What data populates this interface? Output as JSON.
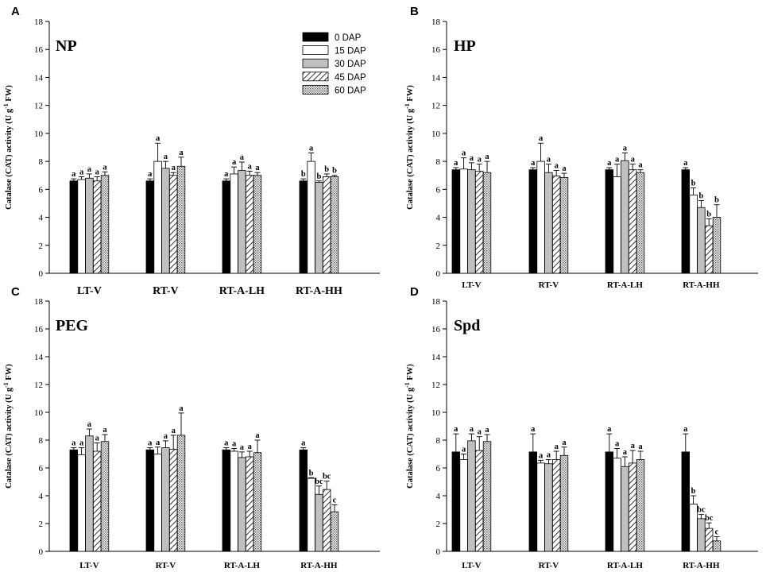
{
  "figure": {
    "series_names": [
      "0 DAP",
      "15 DAP",
      "30 DAP",
      "45 DAP",
      "60 DAP"
    ],
    "categories": [
      "LT-V",
      "RT-V",
      "RT-A-LH",
      "RT-A-HH"
    ]
  },
  "chart_data": [
    {
      "panel_label": "A",
      "title": "NP",
      "type": "bar",
      "ylabel_main": "Catalase (CAT) activity (U g",
      "ylabel_sup": "-1",
      "ylabel_end": " FW)",
      "ylim": [
        0,
        18
      ],
      "yticks": [
        0,
        2,
        4,
        6,
        8,
        10,
        12,
        14,
        16,
        18
      ],
      "categories": [
        "LT-V",
        "RT-V",
        "RT-A-LH",
        "RT-A-HH"
      ],
      "series": [
        {
          "name": "0 DAP",
          "values": [
            6.6,
            6.6,
            6.6,
            6.6
          ],
          "errors": [
            0.15,
            0.15,
            0.15,
            0.15
          ],
          "letters": [
            "a",
            "a",
            "a",
            "b"
          ]
        },
        {
          "name": "15 DAP",
          "values": [
            6.7,
            8.0,
            7.1,
            8.0
          ],
          "errors": [
            0.2,
            1.3,
            0.5,
            0.6
          ],
          "letters": [
            "a",
            "a",
            "a",
            "a"
          ]
        },
        {
          "name": "30 DAP",
          "values": [
            6.8,
            7.5,
            7.35,
            6.5
          ],
          "errors": [
            0.3,
            0.5,
            0.6,
            0.1
          ],
          "letters": [
            "a",
            "a",
            "a",
            "b"
          ]
        },
        {
          "name": "45 DAP",
          "values": [
            6.6,
            7.0,
            7.0,
            6.9
          ],
          "errors": [
            0.3,
            0.2,
            0.3,
            0.2
          ],
          "letters": [
            "a",
            "a",
            "a",
            "b"
          ]
        },
        {
          "name": "60 DAP",
          "values": [
            7.0,
            7.65,
            7.0,
            6.9
          ],
          "errors": [
            0.25,
            0.65,
            0.2,
            0.1
          ],
          "letters": [
            "a",
            "a",
            "a",
            "b"
          ]
        }
      ]
    },
    {
      "panel_label": "B",
      "title": "HP",
      "type": "bar",
      "ylabel_main": "Catalase (CAT) activity (U g",
      "ylabel_sup": "-1",
      "ylabel_end": " FW)",
      "ylim": [
        0,
        18
      ],
      "yticks": [
        0,
        2,
        4,
        6,
        8,
        10,
        12,
        14,
        16,
        18
      ],
      "categories": [
        "LT-V",
        "RT-V",
        "RT-A-LH",
        "RT-A-HH"
      ],
      "series": [
        {
          "name": "0 DAP",
          "values": [
            7.4,
            7.4,
            7.4,
            7.4
          ],
          "errors": [
            0.15,
            0.15,
            0.15,
            0.15
          ],
          "letters": [
            "a",
            "a",
            "a",
            "a"
          ]
        },
        {
          "name": "15 DAP",
          "values": [
            7.45,
            8.0,
            6.9,
            5.6
          ],
          "errors": [
            0.8,
            1.3,
            0.9,
            0.5
          ],
          "letters": [
            "a",
            "a",
            "a",
            "b"
          ]
        },
        {
          "name": "30 DAP",
          "values": [
            7.4,
            7.2,
            8.05,
            4.7
          ],
          "errors": [
            0.5,
            0.6,
            0.55,
            0.5
          ],
          "letters": [
            "a",
            "a",
            "a",
            "b"
          ]
        },
        {
          "name": "45 DAP",
          "values": [
            7.3,
            6.95,
            7.4,
            3.4
          ],
          "errors": [
            0.5,
            0.4,
            0.4,
            0.5
          ],
          "letters": [
            "a",
            "a",
            "a",
            "b"
          ]
        },
        {
          "name": "60 DAP",
          "values": [
            7.2,
            6.85,
            7.2,
            4.0
          ],
          "errors": [
            0.8,
            0.3,
            0.2,
            0.9
          ],
          "letters": [
            "a",
            "a",
            "a",
            "b"
          ]
        }
      ]
    },
    {
      "panel_label": "C",
      "title": "PEG",
      "type": "bar",
      "ylabel_main": "Catalase (CAT) activity (U g",
      "ylabel_sup": "-1",
      "ylabel_end": " FW)",
      "ylim": [
        0,
        18
      ],
      "yticks": [
        0,
        2,
        4,
        6,
        8,
        10,
        12,
        14,
        16,
        18
      ],
      "categories": [
        "LT-V",
        "RT-V",
        "RT-A-LH",
        "RT-A-HH"
      ],
      "series": [
        {
          "name": "0 DAP",
          "values": [
            7.3,
            7.3,
            7.3,
            7.3
          ],
          "errors": [
            0.15,
            0.15,
            0.15,
            0.15
          ],
          "letters": [
            "a",
            "a",
            "a",
            "a"
          ]
        },
        {
          "name": "15 DAP",
          "values": [
            6.95,
            7.0,
            7.2,
            5.25
          ],
          "errors": [
            0.5,
            0.5,
            0.2,
            0.05
          ],
          "letters": [
            "a",
            "a",
            "a",
            "b"
          ]
        },
        {
          "name": "30 DAP",
          "values": [
            8.3,
            7.45,
            6.75,
            4.1
          ],
          "errors": [
            0.5,
            0.5,
            0.4,
            0.6
          ],
          "letters": [
            "a",
            "a",
            "a",
            "bc"
          ]
        },
        {
          "name": "45 DAP",
          "values": [
            7.2,
            7.35,
            6.8,
            4.45
          ],
          "errors": [
            0.6,
            1.0,
            0.4,
            0.6
          ],
          "letters": [
            "a",
            "a",
            "a",
            "bc"
          ]
        },
        {
          "name": "60 DAP",
          "values": [
            7.9,
            8.35,
            7.1,
            2.85
          ],
          "errors": [
            0.5,
            1.6,
            0.9,
            0.5
          ],
          "letters": [
            "a",
            "a",
            "a",
            "c"
          ]
        }
      ]
    },
    {
      "panel_label": "D",
      "title": "Spd",
      "type": "bar",
      "ylabel_main": "Catalase (CAT) activity (U g",
      "ylabel_sup": "-1",
      "ylabel_end": " FW)",
      "ylim": [
        0,
        18
      ],
      "yticks": [
        0,
        2,
        4,
        6,
        8,
        10,
        12,
        14,
        16,
        18
      ],
      "categories": [
        "LT-V",
        "RT-V",
        "RT-A-LH",
        "RT-A-HH"
      ],
      "series": [
        {
          "name": "0 DAP",
          "values": [
            7.15,
            7.15,
            7.15,
            7.15
          ],
          "errors": [
            1.3,
            1.3,
            1.3,
            1.3
          ],
          "letters": [
            "a",
            "a",
            "a",
            "a"
          ]
        },
        {
          "name": "15 DAP",
          "values": [
            6.6,
            6.35,
            6.7,
            3.4
          ],
          "errors": [
            0.4,
            0.2,
            0.7,
            0.6
          ],
          "letters": [
            "a",
            "a",
            "a",
            "b"
          ]
        },
        {
          "name": "30 DAP",
          "values": [
            7.95,
            6.3,
            6.1,
            2.35
          ],
          "errors": [
            0.5,
            0.3,
            0.7,
            0.3
          ],
          "letters": [
            "a",
            "a",
            "a",
            "bc"
          ]
        },
        {
          "name": "45 DAP",
          "values": [
            7.25,
            6.6,
            6.35,
            1.65
          ],
          "errors": [
            1.0,
            0.6,
            0.9,
            0.4
          ],
          "letters": [
            "a",
            "a",
            "a",
            "bc"
          ]
        },
        {
          "name": "60 DAP",
          "values": [
            7.9,
            6.9,
            6.6,
            0.75
          ],
          "errors": [
            0.5,
            0.6,
            0.6,
            0.3
          ],
          "letters": [
            "a",
            "a",
            "a",
            "c"
          ]
        }
      ]
    }
  ]
}
